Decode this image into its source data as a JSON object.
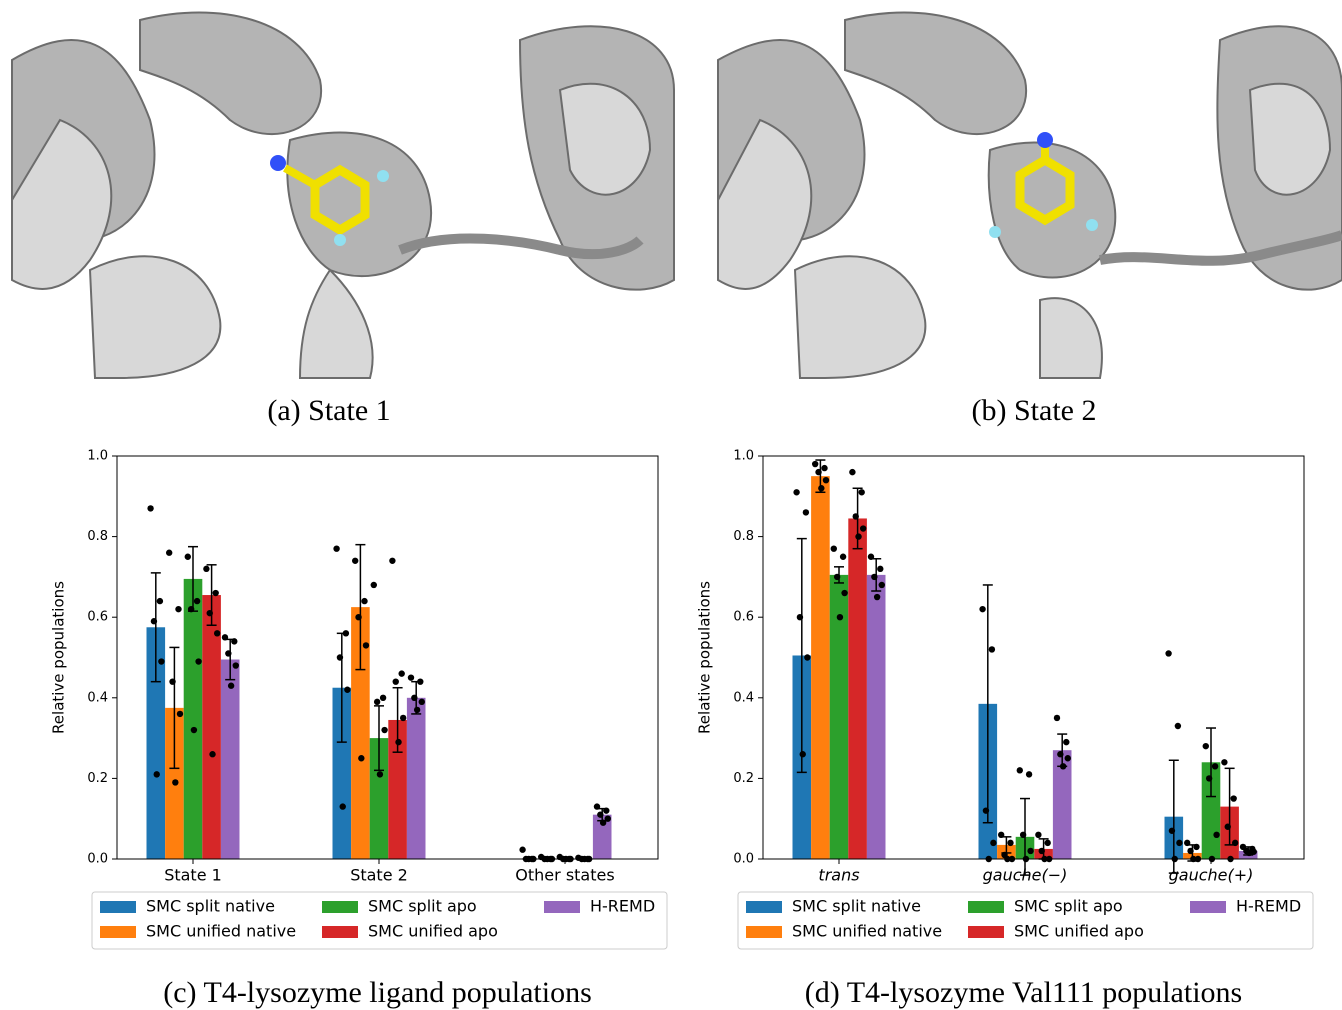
{
  "figures": [
    {
      "caption": "(a) State 1"
    },
    {
      "caption": "(b) State 2"
    }
  ],
  "chart_data": [
    {
      "type": "bar",
      "caption": "(c) T4-lysozyme ligand populations",
      "ylabel": "Relative populations",
      "categories": [
        "State 1",
        "State 2",
        "Other states"
      ],
      "ylim": [
        0,
        1
      ],
      "yticks": [
        {
          "value": 0,
          "label": "0.0"
        },
        0.2,
        0.4,
        0.6,
        0.8,
        {
          "value": 1,
          "label": "1.0"
        }
      ],
      "legend": "bottom",
      "series": [
        {
          "name": "SMC split native",
          "color": "#1f77b4",
          "values": [
            0.575,
            0.425,
            0
          ],
          "errors": [
            0.135,
            0.135,
            0
          ],
          "points": [
            [
              0.87,
              0.64,
              0.59,
              0.49,
              0.21
            ],
            [
              0.77,
              0.56,
              0.5,
              0.42,
              0.13
            ],
            [
              0.023,
              0,
              0,
              0,
              0
            ]
          ]
        },
        {
          "name": "SMC unified native",
          "color": "#ff7f0e",
          "values": [
            0.375,
            0.625,
            0
          ],
          "errors": [
            0.15,
            0.155,
            0
          ],
          "points": [
            [
              0.76,
              0.62,
              0.44,
              0.36,
              0.19
            ],
            [
              0.74,
              0.64,
              0.6,
              0.53,
              0.25
            ],
            [
              0.005,
              0,
              0,
              0,
              0
            ]
          ]
        },
        {
          "name": "SMC split apo",
          "color": "#2ca02c",
          "values": [
            0.695,
            0.3,
            0
          ],
          "errors": [
            0.08,
            0.08,
            0
          ],
          "points": [
            [
              0.75,
              0.64,
              0.62,
              0.49,
              0.32
            ],
            [
              0.68,
              0.4,
              0.39,
              0.32,
              0.21
            ],
            [
              0.005,
              0,
              0,
              0,
              0
            ]
          ]
        },
        {
          "name": "SMC unified apo",
          "color": "#d62728",
          "values": [
            0.655,
            0.345,
            0
          ],
          "errors": [
            0.075,
            0.08,
            0
          ],
          "points": [
            [
              0.72,
              0.66,
              0.61,
              0.56,
              0.26
            ],
            [
              0.74,
              0.46,
              0.44,
              0.35,
              0.29
            ],
            [
              0.003,
              0,
              0,
              0,
              0
            ]
          ]
        },
        {
          "name": "H-REMD",
          "color": "#9467bd",
          "values": [
            0.495,
            0.4,
            0.11
          ],
          "errors": [
            0.05,
            0.04,
            0.015
          ],
          "points": [
            [
              0.55,
              0.54,
              0.51,
              0.48,
              0.43
            ],
            [
              0.45,
              0.44,
              0.4,
              0.39,
              0.37
            ],
            [
              0.13,
              0.12,
              0.11,
              0.1,
              0.09
            ]
          ]
        }
      ]
    },
    {
      "type": "bar",
      "caption": "(d) T4-lysozyme Val111 populations",
      "ylabel": "Relative populations",
      "categories": [
        "trans",
        "gauche(−)",
        "gauche(+)"
      ],
      "ylim": [
        0,
        1
      ],
      "yticks": [
        {
          "value": 0,
          "label": "0.0"
        },
        0.2,
        0.4,
        0.6,
        0.8,
        {
          "value": 1,
          "label": "1.0"
        }
      ],
      "legend": "bottom",
      "series": [
        {
          "name": "SMC split native",
          "color": "#1f77b4",
          "values": [
            0.505,
            0.385,
            0.105
          ],
          "errors": [
            0.29,
            0.295,
            0.14
          ],
          "points": [
            [
              0.91,
              0.86,
              0.6,
              0.5,
              0.26
            ],
            [
              0.62,
              0.52,
              0.12,
              0.04,
              0
            ],
            [
              0.51,
              0.33,
              0.07,
              0.04,
              0
            ]
          ]
        },
        {
          "name": "SMC unified native",
          "color": "#ff7f0e",
          "values": [
            0.95,
            0.035,
            0.015
          ],
          "errors": [
            0.04,
            0.02,
            0.02
          ],
          "points": [
            [
              0.98,
              0.97,
              0.96,
              0.94,
              0.92
            ],
            [
              0.06,
              0.04,
              0.01,
              0,
              0
            ],
            [
              0.04,
              0.03,
              0.02,
              0,
              0
            ]
          ]
        },
        {
          "name": "SMC split apo",
          "color": "#2ca02c",
          "values": [
            0.705,
            0.055,
            0.24
          ],
          "errors": [
            0.02,
            0.095,
            0.085
          ],
          "points": [
            [
              0.77,
              0.75,
              0.7,
              0.66,
              0.6
            ],
            [
              0.22,
              0.21,
              0.06,
              0.02,
              0
            ],
            [
              0.28,
              0.23,
              0.2,
              0.06,
              0
            ]
          ]
        },
        {
          "name": "SMC unified apo",
          "color": "#d62728",
          "values": [
            0.845,
            0.025,
            0.13
          ],
          "errors": [
            0.075,
            0.025,
            0.095
          ],
          "points": [
            [
              0.96,
              0.91,
              0.85,
              0.82,
              0.8
            ],
            [
              0.06,
              0.04,
              0.02,
              0,
              0
            ],
            [
              0.24,
              0.15,
              0.08,
              0.04,
              0
            ]
          ]
        },
        {
          "name": "H-REMD",
          "color": "#9467bd",
          "values": [
            0.705,
            0.27,
            0.02
          ],
          "errors": [
            0.04,
            0.04,
            0.01
          ],
          "points": [
            [
              0.75,
              0.72,
              0.7,
              0.68,
              0.65
            ],
            [
              0.35,
              0.29,
              0.26,
              0.25,
              0.23
            ],
            [
              0.03,
              0.025,
              0.02,
              0.018,
              0.015
            ]
          ]
        }
      ]
    }
  ]
}
